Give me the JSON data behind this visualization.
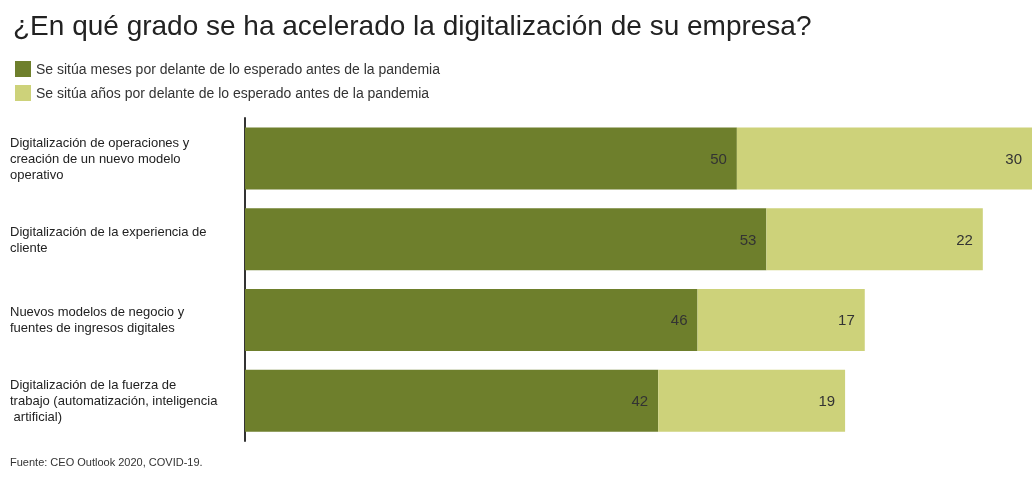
{
  "chart_data": {
    "type": "bar",
    "orientation": "horizontal",
    "stacked": true,
    "title": "¿En qué grado se ha acelerado la digitalización de su empresa?",
    "categories": [
      "Digitalización de operaciones y creación de un nuevo modelo operativo",
      "Digitalización de la experiencia de cliente",
      "Nuevos modelos de negocio y fuentes de ingresos digitales",
      "Digitalización de la fuerza de trabajo (automatización, inteligencia artificial)"
    ],
    "series": [
      {
        "name": "Se sitúa meses por delante de lo esperado antes de la pandemia",
        "color": "#6e7f2c",
        "values": [
          50,
          53,
          46,
          42
        ]
      },
      {
        "name": "Se sitúa años por delante de lo esperado antes de la pandemia",
        "color": "#cdd27a",
        "values": [
          30,
          22,
          17,
          19
        ]
      }
    ],
    "xlim": [
      0,
      80
    ],
    "tick_labels": "y",
    "data_labels": true,
    "legend": "top left",
    "grid": false,
    "annotations": [
      "Fuente: CEO Outlook 2020, COVID-19."
    ]
  }
}
